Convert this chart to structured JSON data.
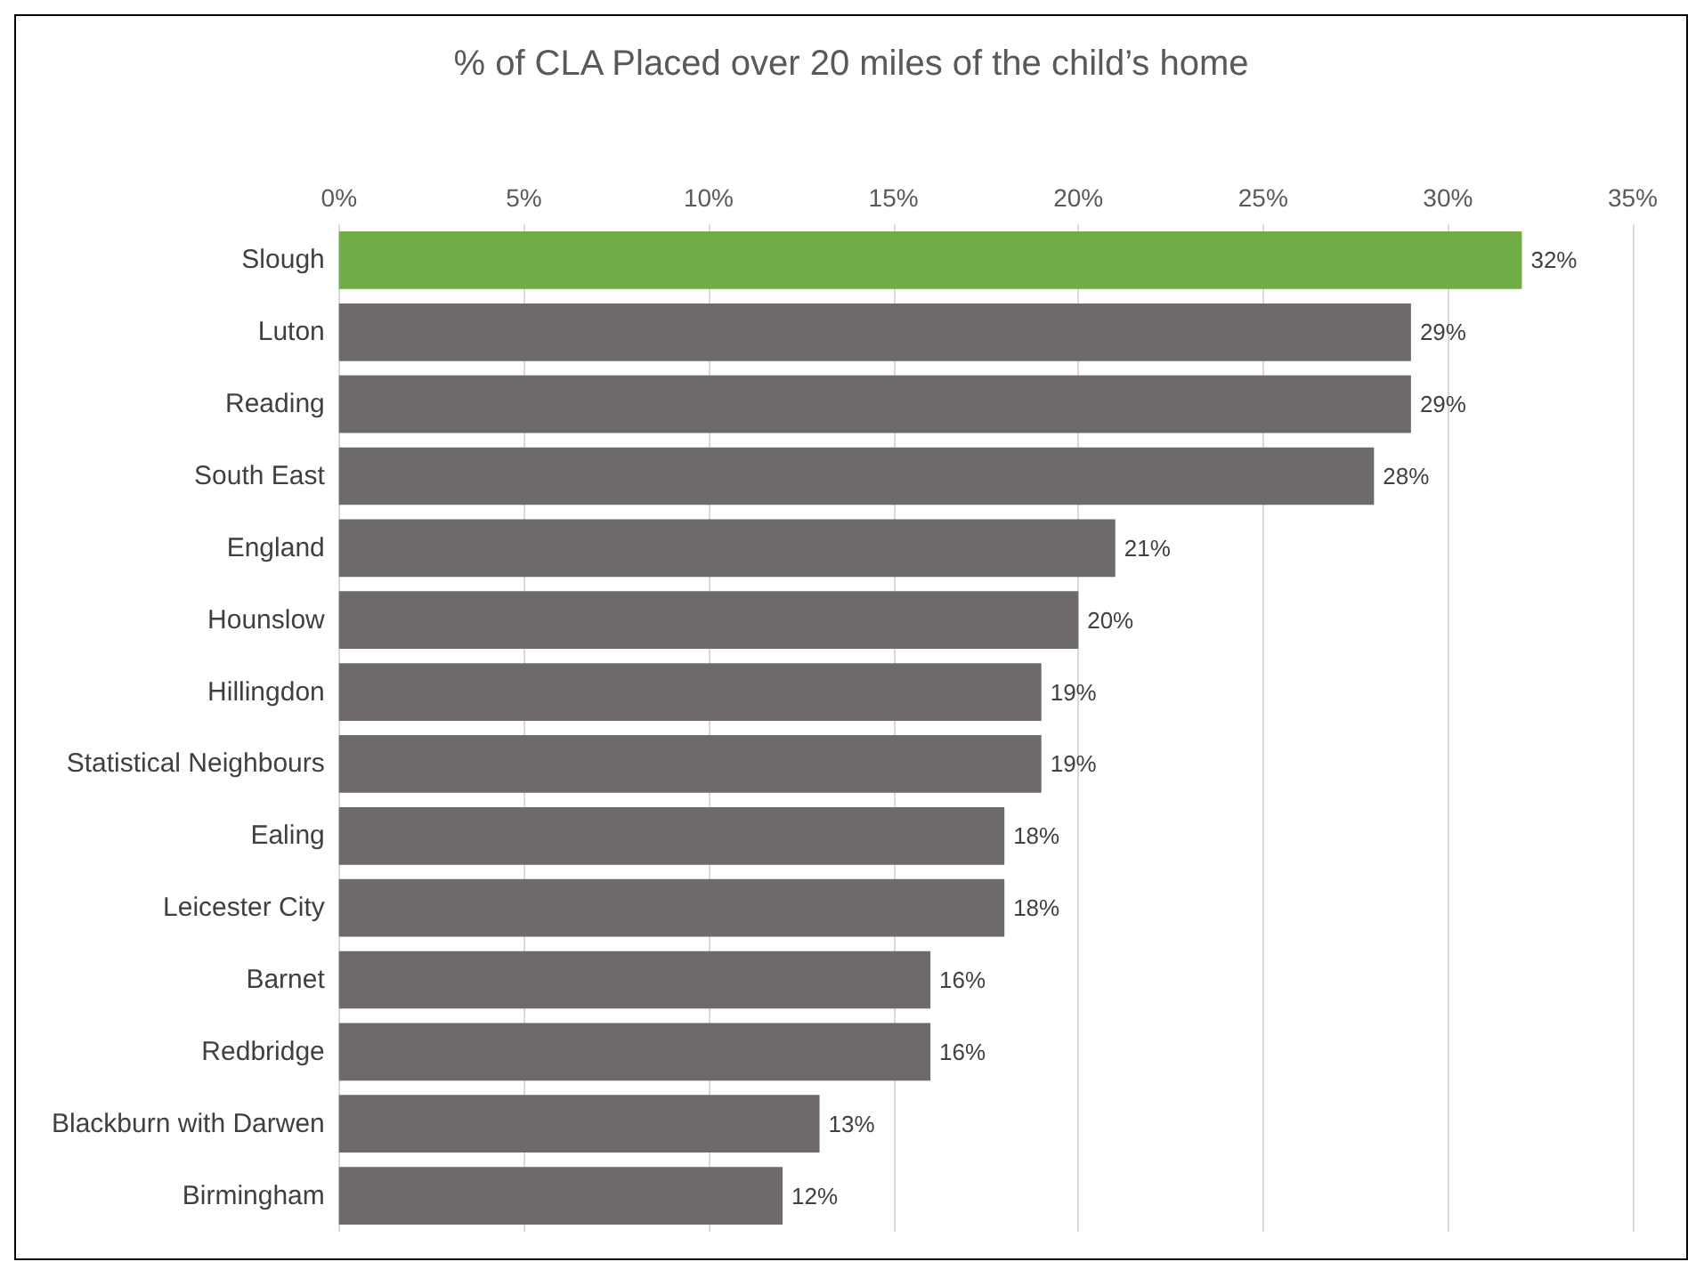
{
  "chart_data": {
    "type": "bar",
    "orientation": "horizontal",
    "title": "% of CLA Placed over 20 miles of the child’s home",
    "categories": [
      "Slough",
      "Luton",
      "Reading",
      "South East",
      "England",
      "Hounslow",
      "Hillingdon",
      "Statistical Neighbours",
      "Ealing",
      "Leicester City",
      "Barnet",
      "Redbridge",
      "Blackburn with Darwen",
      "Birmingham"
    ],
    "values": [
      32,
      29,
      29,
      28,
      21,
      20,
      19,
      19,
      18,
      18,
      16,
      16,
      13,
      12
    ],
    "colors": [
      "#70ad47",
      "#6e6a69",
      "#6e6a69",
      "#6e6a69",
      "#6e6a69",
      "#6e6a69",
      "#6e6a69",
      "#6e6a69",
      "#6e6a69",
      "#6e6a69",
      "#6e6a69",
      "#6e6a69",
      "#6e6a69",
      "#6e6a69"
    ],
    "value_labels": [
      "32%",
      "29%",
      "29%",
      "28%",
      "21%",
      "20%",
      "19%",
      "19%",
      "18%",
      "18%",
      "16%",
      "16%",
      "13%",
      "12%"
    ],
    "xlim": [
      0,
      35
    ],
    "xticks": [
      {
        "value": 0,
        "label": "0%"
      },
      {
        "value": 5,
        "label": "5%"
      },
      {
        "value": 10,
        "label": "10%"
      },
      {
        "value": 15,
        "label": "15%"
      },
      {
        "value": 20,
        "label": "20%"
      },
      {
        "value": 25,
        "label": "25%"
      },
      {
        "value": 30,
        "label": "30%"
      },
      {
        "value": 35,
        "label": "35%"
      }
    ],
    "grid": "x"
  }
}
